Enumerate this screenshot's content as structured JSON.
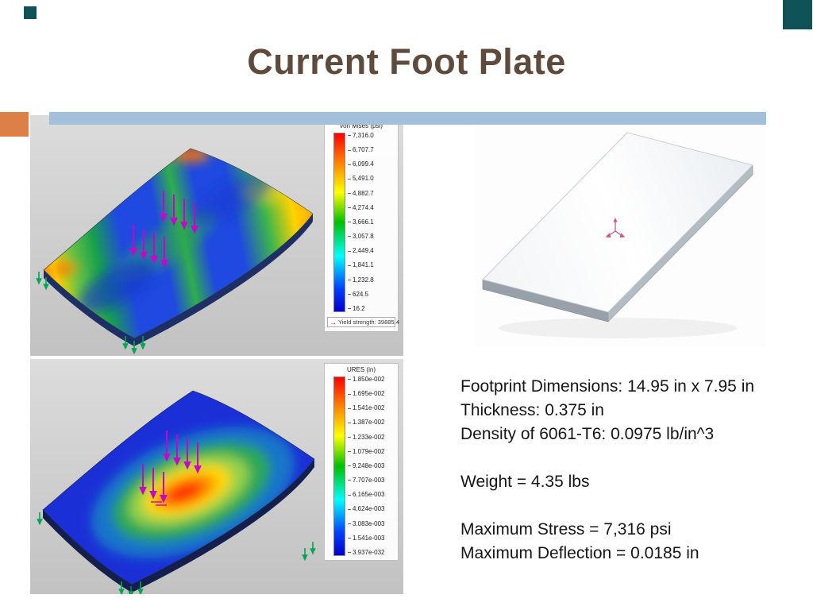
{
  "slide": {
    "title": "Current Foot Plate"
  },
  "stress_plot": {
    "legend_title": "von Mises (psi)",
    "legend_values": [
      "7,316.0",
      "6,707.7",
      "6,099.4",
      "5,491.0",
      "4,882.7",
      "4,274.4",
      "3,666.1",
      "3,057.8",
      "2,449.4",
      "1,841.1",
      "1,232.8",
      "624.5",
      "16.2"
    ],
    "yield_arrow": "→",
    "yield_note": "Yield strength: 39885.4"
  },
  "displacement_plot": {
    "legend_title": "URES (in)",
    "legend_values": [
      "1.850e-002",
      "1.695e-002",
      "1.541e-002",
      "1.387e-002",
      "1.233e-002",
      "1.079e-002",
      "9.248e-003",
      "7.707e-003",
      "6.165e-003",
      "4.624e-003",
      "3.083e-003",
      "1.541e-003",
      "3.937e-032"
    ]
  },
  "specs": {
    "lines": [
      "Footprint Dimensions: 14.95 in x 7.95 in",
      "Thickness: 0.375 in",
      "Density of 6061-T6: 0.0975 lb/in^3",
      "",
      "Weight = 4.35 lbs",
      "",
      "Maximum Stress = 7,316 psi",
      "Maximum Deflection = 0.0185 in"
    ]
  },
  "colors": {
    "title_brown": "#5f4b3b",
    "accent_blue_band": "#a3c0da",
    "accent_orange_band": "#dd8047",
    "corner_teal": "#0f5357",
    "load_arrow_magenta": "#cc00cc",
    "support_arrow_green": "#00a651"
  }
}
